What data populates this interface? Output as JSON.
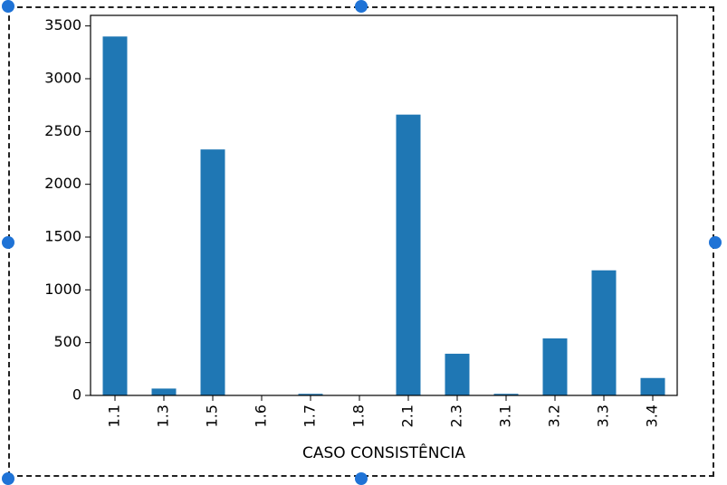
{
  "chart_data": {
    "type": "bar",
    "title": "",
    "xlabel": "CASO CONSISTÊNCIA",
    "ylabel": "",
    "categories": [
      "1.1",
      "1.3",
      "1.5",
      "1.6",
      "1.7",
      "1.8",
      "2.1",
      "2.3",
      "3.1",
      "3.2",
      "3.3",
      "3.4"
    ],
    "values": [
      3400,
      65,
      2330,
      3,
      15,
      3,
      2660,
      395,
      15,
      540,
      1185,
      165
    ],
    "ylim": [
      0,
      3600
    ],
    "yticks": [
      0,
      500,
      1000,
      1500,
      2000,
      2500,
      3000,
      3500
    ],
    "grid": false,
    "bar_color": "#1f77b4"
  },
  "colors": {
    "selection_handle": "#1f73d6"
  }
}
